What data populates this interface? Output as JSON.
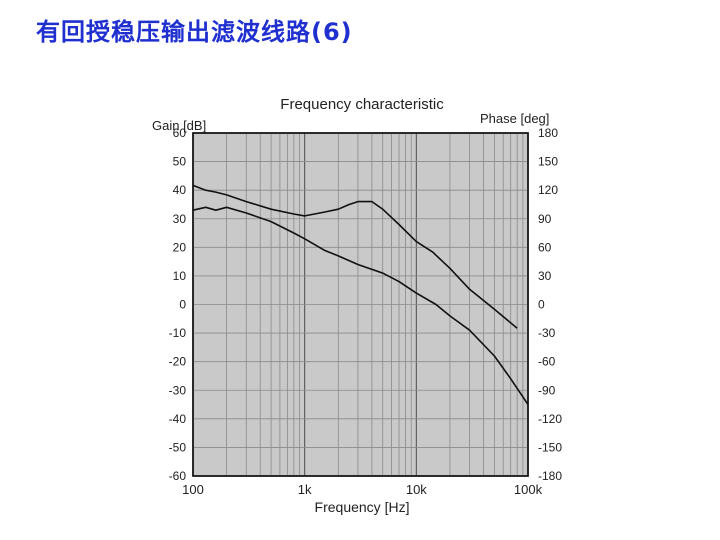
{
  "slide": {
    "title": "有回授稳压输出滤波线路(6)"
  },
  "chart_data": {
    "type": "line",
    "title": "Frequency characteristic",
    "xlabel": "Frequency [Hz]",
    "ylabel": "Gain [dB]",
    "y2label": "Phase [deg]",
    "xscale": "log",
    "xlim": [
      100,
      100000
    ],
    "ylim": [
      -60,
      60
    ],
    "y2lim": [
      -180,
      180
    ],
    "grid": true,
    "x_ticks": [
      {
        "value": 100,
        "label": "100"
      },
      {
        "value": 1000,
        "label": "1k"
      },
      {
        "value": 10000,
        "label": "10k"
      },
      {
        "value": 100000,
        "label": "100k"
      }
    ],
    "y_ticks": [
      "60",
      "50",
      "40",
      "30",
      "20",
      "10",
      "0",
      "-10",
      "-20",
      "-30",
      "-40",
      "-50",
      "-60"
    ],
    "y2_ticks": [
      "180",
      "150",
      "120",
      "90",
      "60",
      "30",
      "0",
      "-30",
      "-60",
      "-90",
      "-120",
      "-150",
      "-180"
    ],
    "series": [
      {
        "axis": "y2",
        "x": [
          100,
          130,
          160,
          200,
          300,
          500,
          800,
          1000,
          1500,
          2000,
          2500,
          3000,
          4000,
          5000,
          7000,
          10000,
          14000,
          20000,
          30000,
          50000,
          80000
        ],
        "values": [
          125,
          120,
          118,
          115,
          108,
          100,
          95,
          93,
          97,
          100,
          105,
          108,
          108,
          100,
          84,
          66,
          55,
          38,
          16,
          -5,
          -25
        ]
      },
      {
        "axis": "y1",
        "x": [
          100,
          130,
          160,
          200,
          300,
          500,
          800,
          1000,
          1500,
          2000,
          3000,
          5000,
          7000,
          10000,
          15000,
          20000,
          30000,
          50000,
          70000,
          100000
        ],
        "values": [
          33,
          34,
          33,
          34,
          32,
          29,
          25,
          23,
          19,
          17,
          14,
          11,
          8,
          4,
          0,
          -4,
          -9,
          -18,
          -26,
          -35
        ]
      }
    ]
  }
}
